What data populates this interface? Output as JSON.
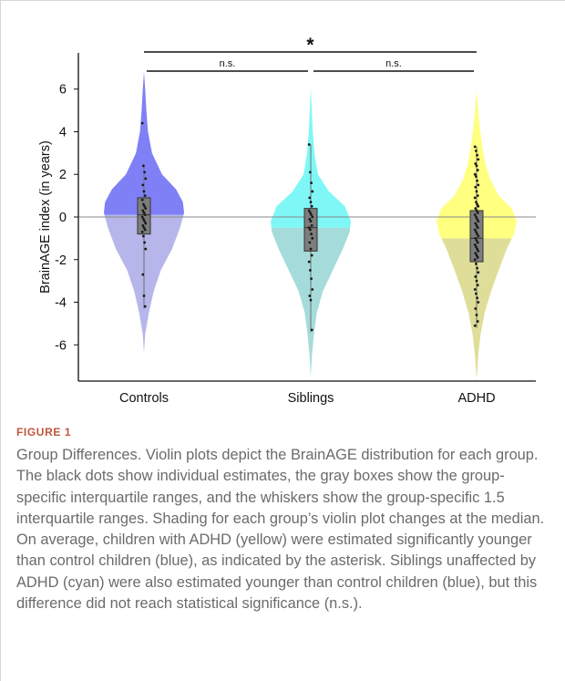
{
  "figure_label": "FIGURE 1",
  "caption": "Group Differences. Violin plots depict the BrainAGE distribution for each group. The black dots show individual estimates, the gray boxes show the group-specific interquartile ranges, and the whiskers show the group-specific 1.5 interquartile ranges. Shading for each group’s violin plot changes at the median. On average, children with ADHD (yellow) were estimated significantly younger than control children (blue), as indicated by the asterisk. Siblings unaffected by ADHD (cyan) were also estimated younger than control children (blue), but this difference did not reach statistical significance (n.s.).",
  "chart_data": {
    "type": "violin",
    "ylabel": "BrainAGE index (in years)",
    "ylim": [
      -7.7,
      7.7
    ],
    "yticks": [
      -6,
      -4,
      -2,
      0,
      2,
      4,
      6
    ],
    "grid": false,
    "reference_line": 0,
    "categories": [
      "Controls",
      "Siblings",
      "ADHD"
    ],
    "groups": [
      {
        "name": "Controls",
        "color_upper": "#8080f6",
        "color_lower": "#b6b6ea",
        "min": -6.4,
        "max": 6.8,
        "median": 0.1,
        "q1": -0.8,
        "q3": 0.9,
        "whisker_low": -4.3,
        "whisker_high": 2.5,
        "profile": [
          [
            -6.4,
            0.0
          ],
          [
            -5.5,
            0.03
          ],
          [
            -4.5,
            0.12
          ],
          [
            -3.5,
            0.24
          ],
          [
            -2.5,
            0.42
          ],
          [
            -1.5,
            0.7
          ],
          [
            -0.5,
            0.9
          ],
          [
            0.2,
            1.0
          ],
          [
            0.7,
            0.97
          ],
          [
            1.3,
            0.8
          ],
          [
            2.0,
            0.45
          ],
          [
            3.0,
            0.2
          ],
          [
            4.0,
            0.1
          ],
          [
            5.0,
            0.06
          ],
          [
            6.0,
            0.03
          ],
          [
            6.8,
            0.0
          ]
        ],
        "points": [
          4.4,
          2.4,
          2.1,
          1.8,
          1.5,
          1.2,
          1.0,
          0.8,
          0.6,
          0.5,
          0.4,
          0.3,
          0.2,
          0.1,
          0.0,
          -0.1,
          -0.2,
          -0.3,
          -0.4,
          -0.5,
          -0.6,
          -0.7,
          -0.9,
          -1.2,
          -1.5,
          -2.7,
          -3.7,
          -4.2
        ]
      },
      {
        "name": "Siblings",
        "color_upper": "#7ff7f7",
        "color_lower": "#a6dbdb",
        "min": -7.5,
        "max": 6.1,
        "median": -0.5,
        "q1": -1.6,
        "q3": 0.4,
        "whisker_low": -5.4,
        "whisker_high": 3.4,
        "profile": [
          [
            -7.5,
            0.0
          ],
          [
            -6.5,
            0.03
          ],
          [
            -5.5,
            0.08
          ],
          [
            -4.5,
            0.15
          ],
          [
            -3.5,
            0.3
          ],
          [
            -2.5,
            0.55
          ],
          [
            -1.5,
            0.8
          ],
          [
            -0.7,
            0.97
          ],
          [
            -0.2,
            1.0
          ],
          [
            0.5,
            0.85
          ],
          [
            1.2,
            0.45
          ],
          [
            2.0,
            0.18
          ],
          [
            3.0,
            0.09
          ],
          [
            4.0,
            0.05
          ],
          [
            5.0,
            0.025
          ],
          [
            6.1,
            0.0
          ]
        ],
        "points": [
          3.4,
          2.1,
          1.6,
          1.2,
          0.9,
          0.7,
          0.5,
          0.3,
          0.2,
          0.1,
          0.0,
          -0.1,
          -0.2,
          -0.4,
          -0.5,
          -0.6,
          -0.8,
          -1.0,
          -1.2,
          -1.5,
          -1.8,
          -2.1,
          -2.5,
          -2.9,
          -3.4,
          -3.7,
          -3.9,
          -5.3
        ]
      },
      {
        "name": "ADHD",
        "color_upper": "#ffff80",
        "color_lower": "#dede99",
        "min": -7.6,
        "max": 5.9,
        "median": -1.0,
        "q1": -2.1,
        "q3": 0.3,
        "whisker_low": -5.2,
        "whisker_high": 3.3,
        "profile": [
          [
            -7.6,
            0.0
          ],
          [
            -6.5,
            0.04
          ],
          [
            -5.5,
            0.1
          ],
          [
            -4.5,
            0.2
          ],
          [
            -3.5,
            0.36
          ],
          [
            -2.5,
            0.55
          ],
          [
            -1.5,
            0.75
          ],
          [
            -0.8,
            0.93
          ],
          [
            -0.2,
            1.0
          ],
          [
            0.4,
            0.88
          ],
          [
            1.0,
            0.55
          ],
          [
            1.8,
            0.33
          ],
          [
            2.5,
            0.22
          ],
          [
            3.3,
            0.14
          ],
          [
            4.2,
            0.08
          ],
          [
            5.0,
            0.04
          ],
          [
            5.9,
            0.0
          ]
        ],
        "points": [
          3.3,
          3.1,
          2.9,
          2.7,
          2.5,
          2.4,
          2.2,
          2.0,
          1.9,
          1.7,
          1.5,
          1.4,
          1.2,
          1.0,
          0.9,
          0.7,
          0.6,
          0.5,
          0.4,
          0.3,
          0.2,
          0.1,
          0.0,
          -0.1,
          -0.2,
          -0.3,
          -0.4,
          -0.5,
          -0.6,
          -0.7,
          -0.8,
          -0.9,
          -1.0,
          -1.1,
          -1.2,
          -1.3,
          -1.4,
          -1.5,
          -1.6,
          -1.7,
          -1.8,
          -1.9,
          -2.0,
          -2.2,
          -2.4,
          -2.6,
          -2.8,
          -3.0,
          -3.2,
          -3.4,
          -3.6,
          -3.8,
          -4.0,
          -4.3,
          -4.6,
          -4.9,
          -5.1
        ]
      }
    ],
    "comparisons": [
      {
        "from": "Controls",
        "to": "Siblings",
        "label": "n.s."
      },
      {
        "from": "Siblings",
        "to": "ADHD",
        "label": "n.s."
      },
      {
        "from": "Controls",
        "to": "ADHD",
        "label": "*"
      }
    ]
  }
}
